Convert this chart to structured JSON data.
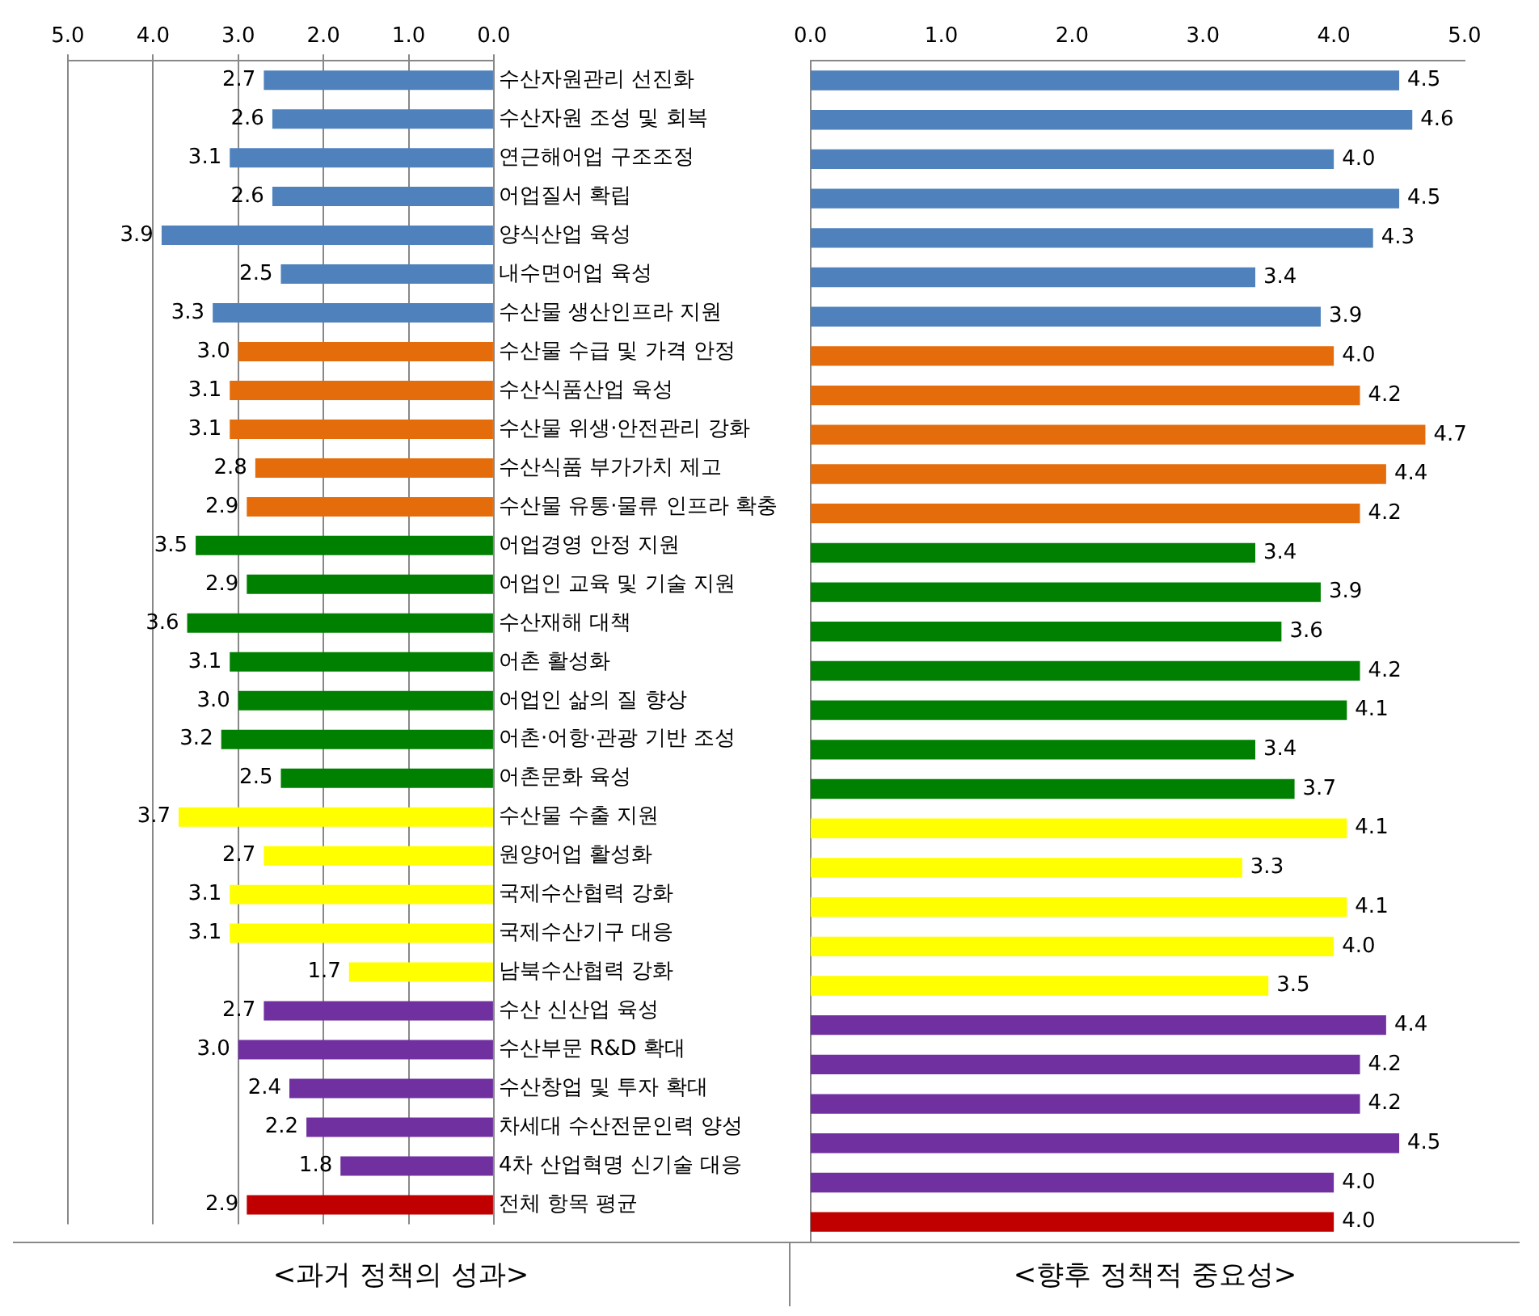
{
  "chart_data": [
    {
      "type": "bar",
      "orientation": "horizontal",
      "title": "<과거 정책의 성과>",
      "categories": [
        "수산자원관리 선진화",
        "수산자원 조성 및 회복",
        "연근해어업 구조조정",
        "어업질서 확립",
        "양식산업 육성",
        "내수면어업 육성",
        "수산물 생산인프라 지원",
        "수산물 수급 및 가격 안정",
        "수산식품산업 육성",
        "수산물 위생·안전관리 강화",
        "수산식품 부가가치 제고",
        "수산물 유통·물류 인프라 확충",
        "어업경영 안정 지원",
        "어업인 교육 및 기술 지원",
        "수산재해 대책",
        "어촌 활성화",
        "어업인 삶의 질 향상",
        "어촌·어항·관광 기반 조성",
        "어촌문화 육성",
        "수산물 수출 지원",
        "원양어업 활성화",
        "국제수산협력 강화",
        "국제수산기구 대응",
        "남북수산협력 강화",
        "수산 신산업 육성",
        "수산부문 R&D 확대",
        "수산창업 및 투자 확대",
        "차세대 수산전문인력 양성",
        "4차 산업혁명 신기술 대응",
        "전체 항목 평균"
      ],
      "values": [
        2.7,
        2.6,
        3.1,
        2.6,
        3.9,
        2.5,
        3.3,
        3.0,
        3.1,
        3.1,
        2.8,
        2.9,
        3.5,
        2.9,
        3.6,
        3.1,
        3.0,
        3.2,
        2.5,
        3.7,
        2.7,
        3.1,
        3.1,
        1.7,
        2.7,
        3.0,
        2.4,
        2.2,
        1.8,
        2.9
      ],
      "colors": [
        "#4f81bd",
        "#4f81bd",
        "#4f81bd",
        "#4f81bd",
        "#4f81bd",
        "#4f81bd",
        "#4f81bd",
        "#e46c0a",
        "#e46c0a",
        "#e46c0a",
        "#e46c0a",
        "#e46c0a",
        "#008000",
        "#008000",
        "#008000",
        "#008000",
        "#008000",
        "#008000",
        "#008000",
        "#ffff00",
        "#ffff00",
        "#ffff00",
        "#ffff00",
        "#ffff00",
        "#7030a0",
        "#7030a0",
        "#7030a0",
        "#7030a0",
        "#7030a0",
        "#c00000"
      ],
      "xlim": [
        5,
        0
      ],
      "xticks": [
        {
          "value": 5,
          "label": "5.0"
        },
        {
          "value": 4,
          "label": "4.0"
        },
        {
          "value": 3,
          "label": "3.0"
        },
        {
          "value": 2,
          "label": "2.0"
        },
        {
          "value": 1,
          "label": "1.0"
        },
        {
          "value": 0,
          "label": "0.0"
        }
      ],
      "value_labels": [
        "2.7",
        "2.6",
        "3.1",
        "2.6",
        "3.9",
        "2.5",
        "3.3",
        "3.0",
        "3.1",
        "3.1",
        "2.8",
        "2.9",
        "3.5",
        "2.9",
        "3.6",
        "3.1",
        "3.0",
        "3.2",
        "2.5",
        "3.7",
        "2.7",
        "3.1",
        "3.1",
        "1.7",
        "2.7",
        "3.0",
        "2.4",
        "2.2",
        "1.8",
        "2.9"
      ],
      "grid": "x"
    },
    {
      "type": "bar",
      "orientation": "horizontal",
      "title": "<향후 정책적 중요성>",
      "categories": [
        null,
        null,
        null,
        null,
        null,
        null,
        null,
        null,
        null,
        null,
        null,
        null,
        null,
        null,
        null,
        null,
        null,
        null,
        null,
        null,
        null,
        null,
        null,
        null,
        null,
        null,
        null,
        null,
        null,
        null
      ],
      "values": [
        4.5,
        4.6,
        4.0,
        4.5,
        4.3,
        3.4,
        3.9,
        4.0,
        4.2,
        4.7,
        4.4,
        4.2,
        3.4,
        3.9,
        3.6,
        4.2,
        4.1,
        3.4,
        3.7,
        4.1,
        3.3,
        4.1,
        4.0,
        3.5,
        4.4,
        4.2,
        4.2,
        4.5,
        4.0,
        4.0
      ],
      "colors": [
        "#4f81bd",
        "#4f81bd",
        "#4f81bd",
        "#4f81bd",
        "#4f81bd",
        "#4f81bd",
        "#4f81bd",
        "#e46c0a",
        "#e46c0a",
        "#e46c0a",
        "#e46c0a",
        "#e46c0a",
        "#008000",
        "#008000",
        "#008000",
        "#008000",
        "#008000",
        "#008000",
        "#008000",
        "#ffff00",
        "#ffff00",
        "#ffff00",
        "#ffff00",
        "#ffff00",
        "#7030a0",
        "#7030a0",
        "#7030a0",
        "#7030a0",
        "#7030a0",
        "#c00000"
      ],
      "xlim": [
        0,
        5
      ],
      "xticks": [
        {
          "value": 0,
          "label": "0.0"
        },
        {
          "value": 1,
          "label": "1.0"
        },
        {
          "value": 2,
          "label": "2.0"
        },
        {
          "value": 3,
          "label": "3.0"
        },
        {
          "value": 4,
          "label": "4.0"
        },
        {
          "value": 5,
          "label": "5.0"
        }
      ],
      "value_labels": [
        "4.5",
        "4.6",
        "4.0",
        "4.5",
        "4.3",
        "3.4",
        "3.9",
        "4.0",
        "4.2",
        "4.7",
        "4.4",
        "4.2",
        "3.4",
        "3.9",
        "3.6",
        "4.2",
        "4.1",
        "3.4",
        "3.7",
        "4.1",
        "3.3",
        "4.1",
        "4.0",
        "3.5",
        "4.4",
        "4.2",
        "4.2",
        "4.5",
        "4.0",
        "4.0"
      ],
      "tick_labels": "x"
    }
  ]
}
